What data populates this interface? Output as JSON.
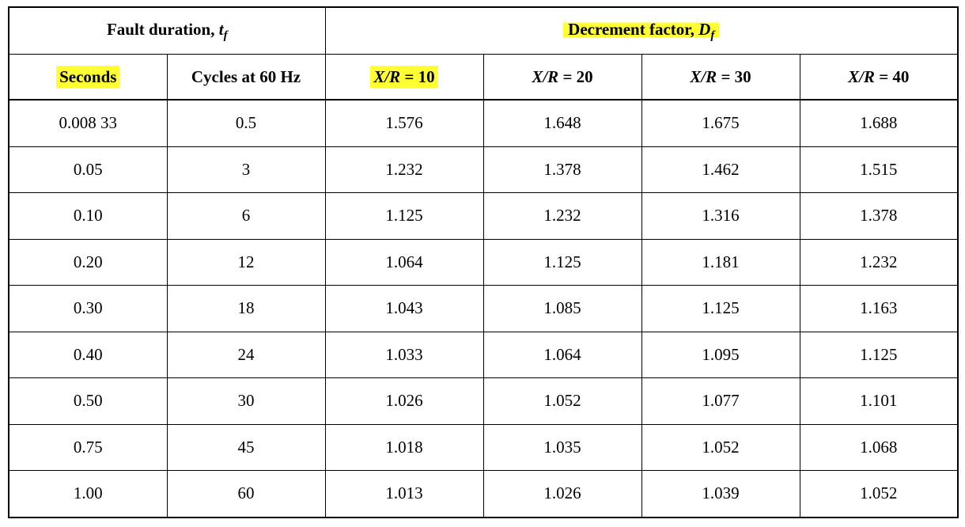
{
  "header": {
    "fault_duration_label": "Fault duration, ",
    "fault_duration_symbol": "t",
    "fault_duration_sub": "f",
    "decrement_label": "Decrement factor, ",
    "decrement_symbol": "D",
    "decrement_sub": "f",
    "seconds": "Seconds",
    "cycles": "Cycles at 60 Hz",
    "xr_var": "X/R",
    "xr_cols": [
      " = 10",
      " = 20",
      " = 30",
      " = 40"
    ]
  },
  "rows": [
    [
      "0.008 33",
      "0.5",
      "1.576",
      "1.648",
      "1.675",
      "1.688"
    ],
    [
      "0.05",
      "3",
      "1.232",
      "1.378",
      "1.462",
      "1.515"
    ],
    [
      "0.10",
      "6",
      "1.125",
      "1.232",
      "1.316",
      "1.378"
    ],
    [
      "0.20",
      "12",
      "1.064",
      "1.125",
      "1.181",
      "1.232"
    ],
    [
      "0.30",
      "18",
      "1.043",
      "1.085",
      "1.125",
      "1.163"
    ],
    [
      "0.40",
      "24",
      "1.033",
      "1.064",
      "1.095",
      "1.125"
    ],
    [
      "0.50",
      "30",
      "1.026",
      "1.052",
      "1.077",
      "1.101"
    ],
    [
      "0.75",
      "45",
      "1.018",
      "1.035",
      "1.052",
      "1.068"
    ],
    [
      "1.00",
      "60",
      "1.013",
      "1.026",
      "1.039",
      "1.052"
    ]
  ],
  "highlight_color": "#ffff33"
}
